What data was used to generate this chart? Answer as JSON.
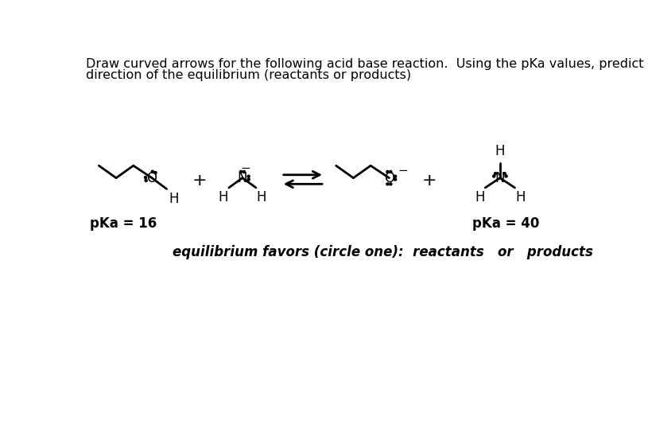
{
  "title_line1": "Draw curved arrows for the following acid base reaction.  Using the pKa values, predict the",
  "title_line2": "direction of the equilibrium (reactants or products)",
  "pka_left": "pKa = 16",
  "pka_right": "pKa = 40",
  "equilibrium_text": "equilibrium favors (circle one):  reactants   or   products",
  "background_color": "#ffffff",
  "text_color": "#000000",
  "title_fontsize": 11.5,
  "label_fontsize": 12,
  "eq_fontsize": 12
}
